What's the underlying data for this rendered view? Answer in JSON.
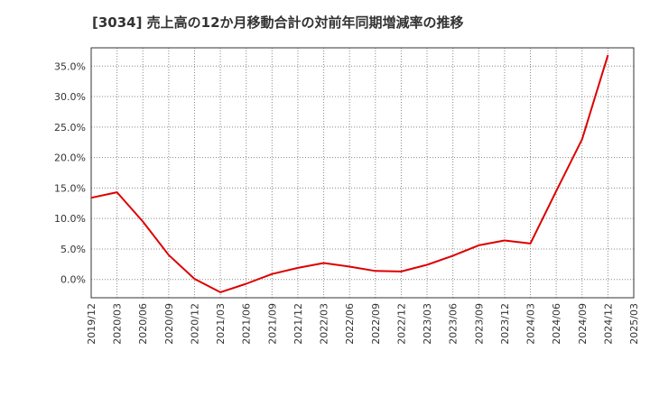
{
  "chart_data": {
    "type": "line",
    "title": "[3034]  売上高の12か月移動合計の対前年同期増減率の推移",
    "xlabel": "",
    "ylabel": "",
    "ylim": [
      -3,
      38
    ],
    "y_ticks": [
      0,
      5,
      10,
      15,
      20,
      25,
      30,
      35
    ],
    "y_tick_labels": [
      "0.0%",
      "5.0%",
      "10.0%",
      "15.0%",
      "20.0%",
      "25.0%",
      "30.0%",
      "35.0%"
    ],
    "categories": [
      "2019/12",
      "2020/03",
      "2020/06",
      "2020/09",
      "2020/12",
      "2021/03",
      "2021/06",
      "2021/09",
      "2021/12",
      "2022/03",
      "2022/06",
      "2022/09",
      "2022/12",
      "2023/03",
      "2023/06",
      "2023/09",
      "2023/12",
      "2024/03",
      "2024/06",
      "2024/09",
      "2024/12",
      "2025/03"
    ],
    "series": [
      {
        "name": "増減率",
        "color": "#dd0000",
        "values": [
          13.4,
          14.3,
          9.5,
          4.0,
          0.1,
          -2.1,
          -0.7,
          0.9,
          1.9,
          2.7,
          2.1,
          1.4,
          1.3,
          2.4,
          3.9,
          5.6,
          6.4,
          5.9,
          14.5,
          23.0,
          36.8,
          null
        ]
      }
    ],
    "grid": true,
    "grid_color": "#888888",
    "line_color": "#dd0000"
  }
}
